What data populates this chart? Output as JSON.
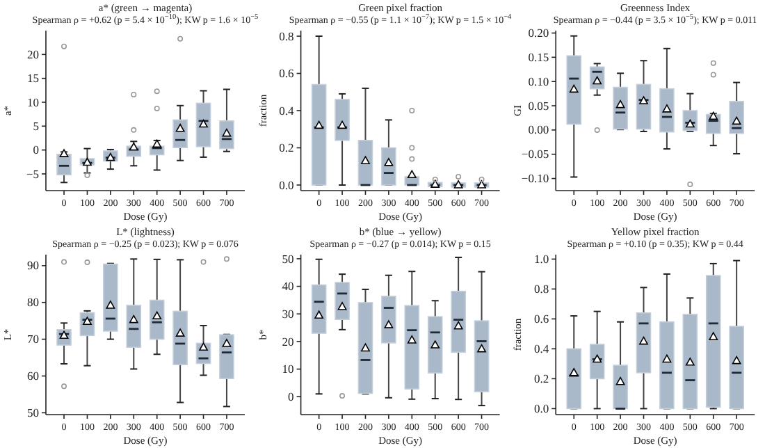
{
  "chart_data": [
    {
      "type": "box",
      "title": "a* (green → magenta)",
      "subtitle": "Spearman ρ = +0.62 (p = 5.4 × 10$^{−10}$); KW p = 1.6 × 10$^{−5}$",
      "xlabel": "Dose (Gy)",
      "ylabel": "a*",
      "categories": [
        "0",
        "100",
        "200",
        "300",
        "400",
        "500",
        "600",
        "700"
      ],
      "ylim": [
        -8.5,
        25
      ],
      "yticks": [
        {
          "value": -5,
          "label": "−5"
        },
        0,
        5,
        10,
        15,
        20
      ],
      "color": "#a9b9c9",
      "grid": false,
      "boxes": [
        {
          "low": -6.8,
          "q1": -5.2,
          "median": -3.3,
          "q3": -0.9,
          "high": -0.4,
          "mean": -0.8,
          "outliers": [
            21.7
          ]
        },
        {
          "low": -4.8,
          "q1": -3.1,
          "median": -2.7,
          "q3": -1.8,
          "high": 0.3,
          "mean": -2.6,
          "outliers": [
            -5.3
          ]
        },
        {
          "low": -4.0,
          "q1": -2.3,
          "median": -1.6,
          "q3": -0.2,
          "high": 0.1,
          "mean": -1.6
        },
        {
          "low": -3.3,
          "q1": -1.3,
          "median": 0.1,
          "q3": 0.8,
          "high": 1.8,
          "mean": 0.6,
          "outliers": [
            4.2,
            11.6
          ]
        },
        {
          "low": -4.2,
          "q1": -1.0,
          "median": 0.4,
          "q3": 0.8,
          "high": 2.0,
          "mean": 1.2,
          "outliers": [
            8.7,
            12.3
          ]
        },
        {
          "low": -2.2,
          "q1": 0.5,
          "median": 2.1,
          "q3": 6.3,
          "high": 9.3,
          "mean": 4.5,
          "outliers": [
            23.3
          ]
        },
        {
          "low": -1.5,
          "q1": 0.7,
          "median": 6.1,
          "q3": 9.8,
          "high": 12.4,
          "mean": 5.4
        },
        {
          "low": -0.3,
          "q1": 0.3,
          "median": 2.3,
          "q3": 6.1,
          "high": 12.7,
          "mean": 3.5
        }
      ]
    },
    {
      "type": "box",
      "title": "Green pixel fraction",
      "subtitle": "Spearman ρ = −0.55 (p = 1.1 × 10$^{−7}$); KW p = 1.5 × 10$^{−4}$",
      "xlabel": "Dose (Gy)",
      "ylabel": "fraction",
      "categories": [
        "0",
        "100",
        "200",
        "300",
        "400",
        "500",
        "600",
        "700"
      ],
      "ylim": [
        -0.03,
        0.83
      ],
      "yticks": [
        {
          "value": 0,
          "label": "0.0"
        },
        0.2,
        0.4,
        0.6,
        0.8
      ],
      "color": "#a9b9c9",
      "grid": false,
      "boxes": [
        {
          "low": 0,
          "q1": 0,
          "median": 0.31,
          "q3": 0.54,
          "high": 0.8,
          "mean": 0.32
        },
        {
          "low": 0,
          "q1": 0.24,
          "median": 0.31,
          "q3": 0.46,
          "high": 0.49,
          "mean": 0.32
        },
        {
          "low": 0,
          "q1": 0,
          "median": 0,
          "q3": 0.24,
          "high": 0.52,
          "mean": 0.13
        },
        {
          "low": 0,
          "q1": 0,
          "median": 0.065,
          "q3": 0.2,
          "high": 0.35,
          "mean": 0.12
        },
        {
          "low": 0,
          "q1": 0,
          "median": 0,
          "q3": 0.045,
          "high": 0.05,
          "mean": 0.055,
          "outliers": [
            0.14,
            0.2,
            0.4
          ]
        },
        {
          "low": 0,
          "q1": 0,
          "median": 0,
          "q3": 0.005,
          "high": 0.01,
          "mean": 0.003,
          "outliers": [
            0.03
          ]
        },
        {
          "low": 0,
          "q1": 0,
          "median": 0,
          "q3": 0,
          "high": 0,
          "mean": 0,
          "outliers": [
            0.045
          ]
        },
        {
          "low": 0,
          "q1": 0,
          "median": 0,
          "q3": 0,
          "high": 0.005,
          "mean": 0,
          "outliers": [
            0.03
          ]
        }
      ]
    },
    {
      "type": "box",
      "title": "Greenness Index",
      "subtitle": "Spearman ρ = −0.44 (p = 3.5 × 10$^{−5}$); KW p = 0.011",
      "xlabel": "Dose (Gy)",
      "ylabel": "GI",
      "categories": [
        "0",
        "100",
        "200",
        "300",
        "400",
        "500",
        "600",
        "700"
      ],
      "ylim": [
        -0.125,
        0.205
      ],
      "yticks": [
        {
          "value": -0.1,
          "label": "−0.10"
        },
        {
          "value": -0.05,
          "label": "−0.05"
        },
        {
          "value": 0,
          "label": "0.00"
        },
        0.05,
        {
          "value": 0.1,
          "label": "0.10"
        },
        0.15,
        {
          "value": 0.2,
          "label": "0.20"
        }
      ],
      "color": "#a9b9c9",
      "grid": false,
      "boxes": [
        {
          "low": -0.097,
          "q1": 0.012,
          "median": 0.106,
          "q3": 0.153,
          "high": 0.194,
          "mean": 0.084
        },
        {
          "low": 0.072,
          "q1": 0.085,
          "median": 0.12,
          "q3": 0.13,
          "high": 0.137,
          "mean": 0.101,
          "outliers": [
            0
          ]
        },
        {
          "low": 0.001,
          "q1": 0.002,
          "median": 0.036,
          "q3": 0.088,
          "high": 0.117,
          "mean": 0.052
        },
        {
          "low": -0.003,
          "q1": 0.002,
          "median": 0.062,
          "q3": 0.094,
          "high": 0.143,
          "mean": 0.06
        },
        {
          "low": -0.039,
          "q1": -0.004,
          "median": 0.027,
          "q3": 0.085,
          "high": 0.168,
          "mean": 0.043
        },
        {
          "low": -0.003,
          "q1": -0.001,
          "median": 0.015,
          "q3": 0.04,
          "high": 0.075,
          "mean": 0.012,
          "outliers": [
            -0.112
          ]
        },
        {
          "low": -0.032,
          "q1": -0.007,
          "median": 0.019,
          "q3": 0.032,
          "high": 0.034,
          "mean": 0.028,
          "outliers": [
            0.114,
            0.138
          ]
        },
        {
          "low": -0.049,
          "q1": -0.007,
          "median": 0.004,
          "q3": 0.059,
          "high": 0.098,
          "mean": 0.018
        }
      ]
    },
    {
      "type": "box",
      "title": "L* (lightness)",
      "subtitle": "Spearman ρ = −0.25 (p = 0.023); KW p = 0.076",
      "xlabel": "Dose (Gy)",
      "ylabel": "L*",
      "categories": [
        "0",
        "100",
        "200",
        "300",
        "400",
        "500",
        "600",
        "700"
      ],
      "ylim": [
        49.5,
        93
      ],
      "yticks": [
        50,
        60,
        70,
        80,
        90
      ],
      "color": "#a9b9c9",
      "grid": false,
      "boxes": [
        {
          "low": 63.3,
          "q1": 68.4,
          "median": 71.4,
          "q3": 72.6,
          "high": 74.4,
          "mean": 71,
          "outliers": [
            57.2,
            91
          ]
        },
        {
          "low": 62.8,
          "q1": 71,
          "median": 75.3,
          "q3": 77.2,
          "high": 77.7,
          "mean": 74.8,
          "outliers": [
            90.9
          ]
        },
        {
          "low": 70,
          "q1": 72.2,
          "median": 75.6,
          "q3": 90.4,
          "high": 90.6,
          "mean": 79.2
        },
        {
          "low": 61.9,
          "q1": 67.8,
          "median": 72.8,
          "q3": 79.2,
          "high": 91.8,
          "mean": 75.3
        },
        {
          "low": 65.9,
          "q1": 70,
          "median": 74.6,
          "q3": 80.6,
          "high": 91.7,
          "mean": 76.3
        },
        {
          "low": 52.8,
          "q1": 63.1,
          "median": 68.8,
          "q3": 77.6,
          "high": 91.6,
          "mean": 71.6
        },
        {
          "low": 60.2,
          "q1": 63.4,
          "median": 64.8,
          "q3": 68.9,
          "high": 73.7,
          "mean": 67.8,
          "outliers": [
            91
          ]
        },
        {
          "low": 51.7,
          "q1": 59.3,
          "median": 66.4,
          "q3": 71.2,
          "high": 71.3,
          "mean": 68.8,
          "outliers": [
            91.8
          ]
        }
      ]
    },
    {
      "type": "box",
      "title": "b* (blue → yellow)",
      "subtitle": "Spearman ρ = −0.27 (p = 0.014); KW p = 0.15",
      "xlabel": "Dose (Gy)",
      "ylabel": "b*",
      "categories": [
        "0",
        "100",
        "200",
        "300",
        "400",
        "500",
        "600",
        "700"
      ],
      "ylim": [
        -6.5,
        51.5
      ],
      "yticks": [
        0,
        10,
        20,
        30,
        40,
        50
      ],
      "color": "#a9b9c9",
      "grid": false,
      "boxes": [
        {
          "low": 1,
          "q1": 23,
          "median": 34.4,
          "q3": 40.5,
          "high": 49.8,
          "mean": 29.5
        },
        {
          "low": 24.3,
          "q1": 28,
          "median": 37.4,
          "q3": 41.4,
          "high": 44.4,
          "mean": 32.6,
          "outliers": [
            0.3
          ]
        },
        {
          "low": 1,
          "q1": 1.2,
          "median": 13.3,
          "q3": 34.1,
          "high": 38.9,
          "mean": 17.6
        },
        {
          "low": -0.4,
          "q1": 19.5,
          "median": 32.2,
          "q3": 36.4,
          "high": 44,
          "mean": 26
        },
        {
          "low": -0.9,
          "q1": 2.8,
          "median": 24.1,
          "q3": 33,
          "high": 45.4,
          "mean": 20.5
        },
        {
          "low": -0.7,
          "q1": 8.6,
          "median": 23.3,
          "q3": 29,
          "high": 34.8,
          "mean": 18.7
        },
        {
          "low": -1,
          "q1": 16.1,
          "median": 27.9,
          "q3": 38.2,
          "high": 50.5,
          "mean": 25.6
        },
        {
          "low": -3.2,
          "q1": 1.8,
          "median": 20.1,
          "q3": 27.5,
          "high": 45.3,
          "mean": 17.3
        }
      ]
    },
    {
      "type": "box",
      "title": "Yellow pixel fraction",
      "subtitle": "Spearman ρ = +0.10 (p = 0.35); KW p = 0.44",
      "xlabel": "Dose (Gy)",
      "ylabel": "fraction",
      "categories": [
        "0",
        "100",
        "200",
        "300",
        "400",
        "500",
        "600",
        "700"
      ],
      "ylim": [
        -0.04,
        1.03
      ],
      "yticks": [
        {
          "value": 0,
          "label": "0.0"
        },
        0.2,
        0.4,
        0.6,
        0.8,
        {
          "value": 1,
          "label": "1.0"
        }
      ],
      "color": "#a9b9c9",
      "grid": false,
      "boxes": [
        {
          "low": 0,
          "q1": 0,
          "median": 0.22,
          "q3": 0.4,
          "high": 0.62,
          "mean": 0.24
        },
        {
          "low": 0,
          "q1": 0.2,
          "median": 0.33,
          "q3": 0.43,
          "high": 0.65,
          "mean": 0.33
        },
        {
          "low": 0,
          "q1": 0,
          "median": 0,
          "q3": 0.29,
          "high": 0.58,
          "mean": 0.18
        },
        {
          "low": 0,
          "q1": 0.24,
          "median": 0.57,
          "q3": 0.64,
          "high": 0.81,
          "mean": 0.45
        },
        {
          "low": 0,
          "q1": 0,
          "median": 0.24,
          "q3": 0.58,
          "high": 0.9,
          "mean": 0.33
        },
        {
          "low": 0,
          "q1": 0,
          "median": 0.19,
          "q3": 0.63,
          "high": 0.74,
          "mean": 0.31
        },
        {
          "low": 0,
          "q1": 0.01,
          "median": 0.57,
          "q3": 0.89,
          "high": 0.97,
          "mean": 0.48
        },
        {
          "low": 0,
          "q1": 0,
          "median": 0.24,
          "q3": 0.55,
          "high": 0.99,
          "mean": 0.32
        }
      ]
    }
  ]
}
